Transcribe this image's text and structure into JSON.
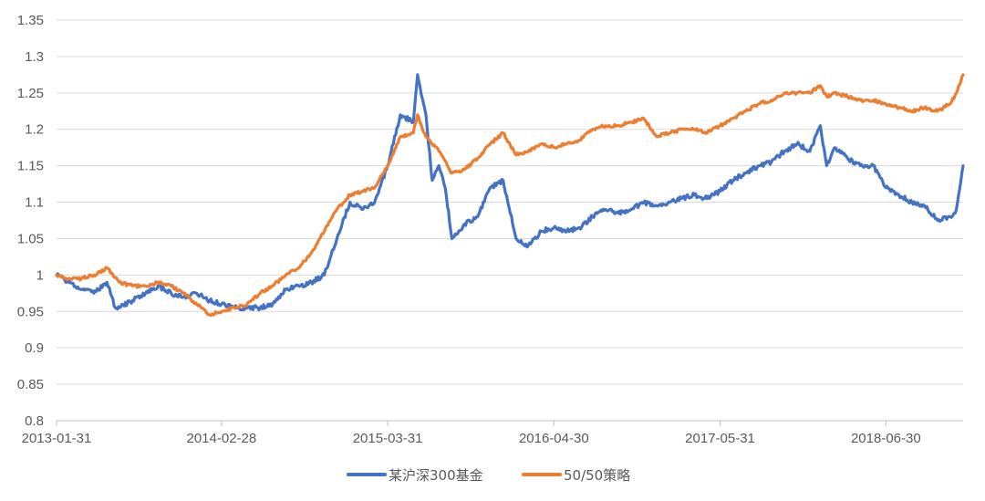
{
  "chart_data": {
    "type": "line",
    "title": "",
    "xlabel": "",
    "ylabel": "",
    "ylim": [
      0.8,
      1.35
    ],
    "y_ticks": [
      0.8,
      0.85,
      0.9,
      0.95,
      1,
      1.05,
      1.1,
      1.15,
      1.2,
      1.25,
      1.3,
      1.35
    ],
    "y_tick_labels": [
      "0.8",
      "0.85",
      "0.9",
      "0.95",
      "1",
      "1.05",
      "1.1",
      "1.15",
      "1.2",
      "1.25",
      "1.3",
      "1.35"
    ],
    "x_range": [
      "2013-01-31",
      "2018-12-31"
    ],
    "x_ticks": [
      "2013-01-31",
      "2014-02-28",
      "2015-03-31",
      "2016-04-30",
      "2017-05-31",
      "2018-06-30"
    ],
    "grid": true,
    "legend_position": "bottom",
    "series": [
      {
        "name": "某沪深300基金",
        "color": "#4472c4",
        "points": [
          [
            "2013-01-31",
            1.0
          ],
          [
            "2013-02-28",
            0.99
          ],
          [
            "2013-03-31",
            0.98
          ],
          [
            "2013-04-30",
            0.975
          ],
          [
            "2013-05-31",
            0.99
          ],
          [
            "2013-06-20",
            0.955
          ],
          [
            "2013-06-30",
            0.955
          ],
          [
            "2013-07-31",
            0.965
          ],
          [
            "2013-08-31",
            0.975
          ],
          [
            "2013-09-30",
            0.985
          ],
          [
            "2013-10-31",
            0.975
          ],
          [
            "2013-11-30",
            0.97
          ],
          [
            "2013-12-31",
            0.975
          ],
          [
            "2014-01-31",
            0.965
          ],
          [
            "2014-02-28",
            0.96
          ],
          [
            "2014-03-31",
            0.955
          ],
          [
            "2014-04-30",
            0.955
          ],
          [
            "2014-05-31",
            0.955
          ],
          [
            "2014-06-30",
            0.96
          ],
          [
            "2014-07-31",
            0.98
          ],
          [
            "2014-08-31",
            0.985
          ],
          [
            "2014-09-30",
            0.99
          ],
          [
            "2014-10-31",
            1.0
          ],
          [
            "2014-11-30",
            1.05
          ],
          [
            "2014-12-31",
            1.1
          ],
          [
            "2015-01-31",
            1.09
          ],
          [
            "2015-02-28",
            1.1
          ],
          [
            "2015-03-31",
            1.15
          ],
          [
            "2015-04-30",
            1.22
          ],
          [
            "2015-05-31",
            1.21
          ],
          [
            "2015-06-10",
            1.275
          ],
          [
            "2015-06-30",
            1.22
          ],
          [
            "2015-07-15",
            1.13
          ],
          [
            "2015-07-31",
            1.15
          ],
          [
            "2015-08-15",
            1.12
          ],
          [
            "2015-08-31",
            1.05
          ],
          [
            "2015-09-30",
            1.07
          ],
          [
            "2015-10-31",
            1.08
          ],
          [
            "2015-11-30",
            1.12
          ],
          [
            "2015-12-31",
            1.13
          ],
          [
            "2016-01-31",
            1.05
          ],
          [
            "2016-02-29",
            1.04
          ],
          [
            "2016-03-31",
            1.06
          ],
          [
            "2016-04-30",
            1.065
          ],
          [
            "2016-05-31",
            1.06
          ],
          [
            "2016-06-30",
            1.065
          ],
          [
            "2016-07-31",
            1.08
          ],
          [
            "2016-08-31",
            1.09
          ],
          [
            "2016-09-30",
            1.085
          ],
          [
            "2016-10-31",
            1.09
          ],
          [
            "2016-11-30",
            1.1
          ],
          [
            "2016-12-31",
            1.095
          ],
          [
            "2017-01-31",
            1.1
          ],
          [
            "2017-02-28",
            1.105
          ],
          [
            "2017-03-31",
            1.11
          ],
          [
            "2017-04-30",
            1.105
          ],
          [
            "2017-05-31",
            1.115
          ],
          [
            "2017-06-30",
            1.13
          ],
          [
            "2017-07-31",
            1.14
          ],
          [
            "2017-08-31",
            1.15
          ],
          [
            "2017-09-30",
            1.155
          ],
          [
            "2017-10-31",
            1.17
          ],
          [
            "2017-11-30",
            1.18
          ],
          [
            "2017-12-31",
            1.17
          ],
          [
            "2018-01-25",
            1.205
          ],
          [
            "2018-02-09",
            1.15
          ],
          [
            "2018-02-28",
            1.175
          ],
          [
            "2018-03-31",
            1.16
          ],
          [
            "2018-04-30",
            1.15
          ],
          [
            "2018-05-31",
            1.15
          ],
          [
            "2018-06-30",
            1.12
          ],
          [
            "2018-07-31",
            1.11
          ],
          [
            "2018-08-31",
            1.1
          ],
          [
            "2018-09-30",
            1.095
          ],
          [
            "2018-10-31",
            1.075
          ],
          [
            "2018-11-30",
            1.08
          ],
          [
            "2018-12-15",
            1.09
          ],
          [
            "2018-12-31",
            1.15
          ]
        ]
      },
      {
        "name": "50/50策略",
        "color": "#ed7d31",
        "points": [
          [
            "2013-01-31",
            1.0
          ],
          [
            "2013-02-28",
            0.995
          ],
          [
            "2013-03-31",
            0.995
          ],
          [
            "2013-04-30",
            1.0
          ],
          [
            "2013-05-31",
            1.01
          ],
          [
            "2013-06-30",
            0.99
          ],
          [
            "2013-07-31",
            0.985
          ],
          [
            "2013-08-31",
            0.985
          ],
          [
            "2013-09-30",
            0.99
          ],
          [
            "2013-10-31",
            0.985
          ],
          [
            "2013-11-30",
            0.975
          ],
          [
            "2013-12-31",
            0.96
          ],
          [
            "2014-01-31",
            0.945
          ],
          [
            "2014-02-28",
            0.95
          ],
          [
            "2014-03-31",
            0.955
          ],
          [
            "2014-04-30",
            0.96
          ],
          [
            "2014-05-31",
            0.975
          ],
          [
            "2014-06-30",
            0.985
          ],
          [
            "2014-07-31",
            1.0
          ],
          [
            "2014-08-31",
            1.01
          ],
          [
            "2014-09-30",
            1.03
          ],
          [
            "2014-10-31",
            1.06
          ],
          [
            "2014-11-30",
            1.09
          ],
          [
            "2014-12-31",
            1.11
          ],
          [
            "2015-01-31",
            1.115
          ],
          [
            "2015-02-28",
            1.12
          ],
          [
            "2015-03-31",
            1.15
          ],
          [
            "2015-04-30",
            1.19
          ],
          [
            "2015-05-31",
            1.195
          ],
          [
            "2015-06-10",
            1.22
          ],
          [
            "2015-06-30",
            1.19
          ],
          [
            "2015-07-31",
            1.17
          ],
          [
            "2015-08-31",
            1.14
          ],
          [
            "2015-09-30",
            1.145
          ],
          [
            "2015-10-31",
            1.16
          ],
          [
            "2015-11-30",
            1.18
          ],
          [
            "2015-12-31",
            1.195
          ],
          [
            "2016-01-31",
            1.165
          ],
          [
            "2016-02-29",
            1.17
          ],
          [
            "2016-03-31",
            1.18
          ],
          [
            "2016-04-30",
            1.175
          ],
          [
            "2016-05-31",
            1.18
          ],
          [
            "2016-06-30",
            1.185
          ],
          [
            "2016-07-31",
            1.2
          ],
          [
            "2016-08-31",
            1.205
          ],
          [
            "2016-09-30",
            1.205
          ],
          [
            "2016-10-31",
            1.21
          ],
          [
            "2016-11-30",
            1.215
          ],
          [
            "2016-12-31",
            1.19
          ],
          [
            "2017-01-31",
            1.195
          ],
          [
            "2017-02-28",
            1.2
          ],
          [
            "2017-03-31",
            1.2
          ],
          [
            "2017-04-30",
            1.195
          ],
          [
            "2017-05-31",
            1.205
          ],
          [
            "2017-06-30",
            1.215
          ],
          [
            "2017-07-31",
            1.225
          ],
          [
            "2017-08-31",
            1.235
          ],
          [
            "2017-09-30",
            1.24
          ],
          [
            "2017-10-31",
            1.25
          ],
          [
            "2017-11-30",
            1.25
          ],
          [
            "2017-12-31",
            1.25
          ],
          [
            "2018-01-25",
            1.26
          ],
          [
            "2018-02-09",
            1.245
          ],
          [
            "2018-02-28",
            1.25
          ],
          [
            "2018-03-31",
            1.245
          ],
          [
            "2018-04-30",
            1.24
          ],
          [
            "2018-05-31",
            1.24
          ],
          [
            "2018-06-30",
            1.235
          ],
          [
            "2018-07-31",
            1.23
          ],
          [
            "2018-08-31",
            1.225
          ],
          [
            "2018-09-30",
            1.23
          ],
          [
            "2018-10-31",
            1.225
          ],
          [
            "2018-11-30",
            1.235
          ],
          [
            "2018-12-15",
            1.25
          ],
          [
            "2018-12-31",
            1.275
          ]
        ]
      }
    ]
  }
}
